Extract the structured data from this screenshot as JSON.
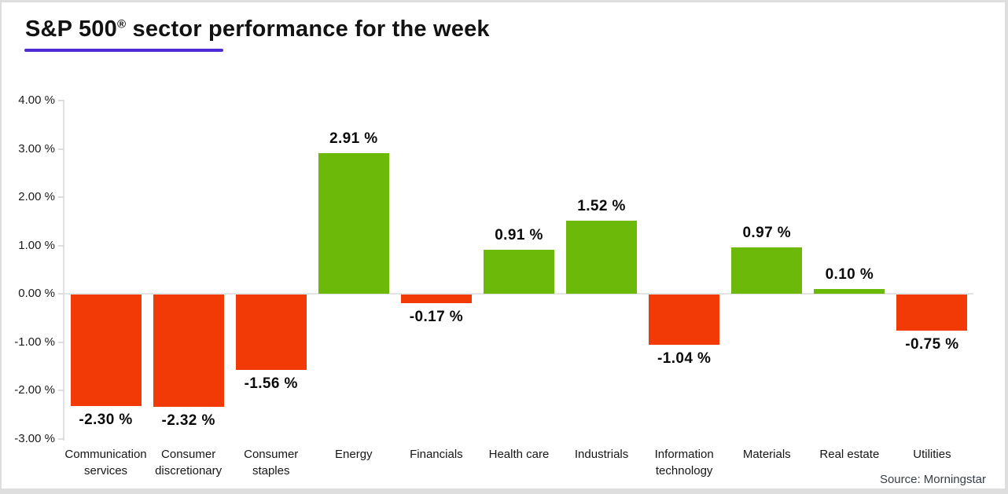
{
  "header": {
    "title_main": "S&P 500",
    "title_reg": "®",
    "title_rest": " sector performance for the week"
  },
  "footer": {
    "source": "Source: Morningstar"
  },
  "colors": {
    "positive_bar": "#6CB90A",
    "negative_bar": "#F23A06",
    "title_underline": "#4C2BD4",
    "axis_line": "#E2E2E2"
  },
  "chart_data": {
    "type": "bar",
    "title": "S&P 500® sector performance for the week",
    "categories": [
      "Communication services",
      "Consumer discretionary",
      "Consumer staples",
      "Energy",
      "Financials",
      "Health care",
      "Industrials",
      "Information technology",
      "Materials",
      "Real estate",
      "Utilities"
    ],
    "values": [
      -2.3,
      -2.32,
      -1.56,
      2.91,
      -0.17,
      0.91,
      1.52,
      -1.04,
      0.97,
      0.1,
      -0.75
    ],
    "value_labels": [
      "-2.30 %",
      "-2.32 %",
      "-1.56 %",
      "2.91 %",
      "-0.17 %",
      "0.91 %",
      "1.52 %",
      "-1.04 %",
      "0.97 %",
      "0.10 %",
      "-0.75 %"
    ],
    "xlabel": "",
    "ylabel": "",
    "ylim": [
      -3,
      4
    ],
    "yticks": [
      4,
      3,
      2,
      1,
      0,
      -1,
      -2,
      -3
    ],
    "ytick_labels": [
      "4.00 %",
      "3.00 %",
      "2.00 %",
      "1.00 %",
      "0.00 %",
      "-1.00 %",
      "-2.00 %",
      "-3.00 %"
    ],
    "grid": false,
    "legend": false,
    "source": "Source: Morningstar"
  }
}
